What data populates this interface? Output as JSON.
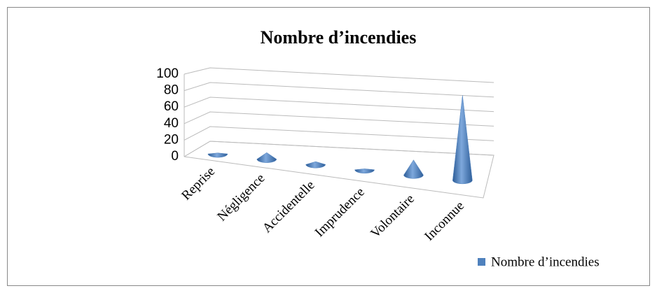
{
  "chart_data": {
    "type": "cone",
    "title": "Nombre d’incendies",
    "categories": [
      "Reprise",
      "Négligence",
      "Accidentelle",
      "Imprudence",
      "Volontaire",
      "Inconnue"
    ],
    "series": [
      {
        "name": "Nombre d’incendies",
        "color": "#4f81bd",
        "values": [
          1,
          7,
          3,
          1,
          16,
          90
        ]
      }
    ],
    "ylim": [
      0,
      100
    ],
    "yticks": [
      0,
      20,
      40,
      60,
      80,
      100
    ],
    "grid": true,
    "legend": "right"
  }
}
